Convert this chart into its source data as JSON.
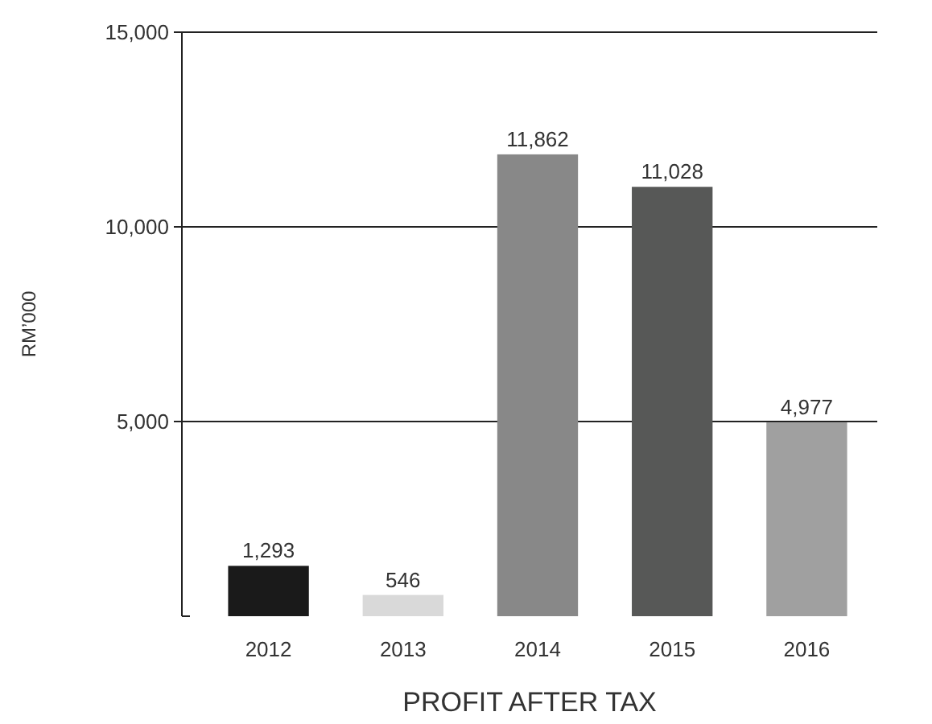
{
  "chart_data": {
    "type": "bar",
    "title": "PROFIT AFTER TAX",
    "ylabel": "RM’000",
    "categories": [
      "2012",
      "2013",
      "2014",
      "2015",
      "2016"
    ],
    "values": [
      1293,
      546,
      11862,
      11028,
      4977
    ],
    "colors": [
      "#1a1a1a",
      "#d9d9d9",
      "#888888",
      "#575857",
      "#a0a0a0"
    ],
    "ylim": [
      0,
      15000
    ],
    "yticks": [
      {
        "value": 0,
        "label": null
      },
      {
        "value": 5000,
        "label": "5,000"
      },
      {
        "value": 10000,
        "label": "10,000"
      },
      {
        "value": 15000,
        "label": "15,000"
      }
    ],
    "value_labels": [
      "1,293",
      "546",
      "11,862",
      "11,028",
      "4,977"
    ],
    "grid": "y"
  }
}
